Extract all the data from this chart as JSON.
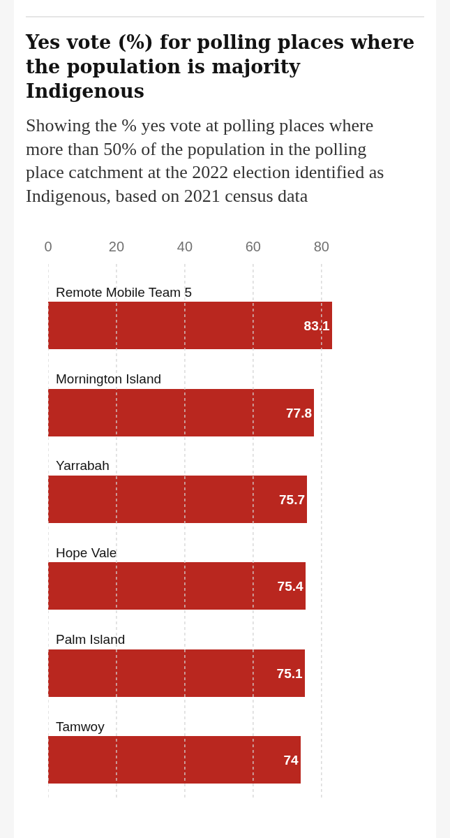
{
  "chart_data": {
    "type": "bar",
    "orientation": "horizontal",
    "title": "Yes vote (%) for polling places where the population is majority Indigenous",
    "subtitle": "Showing the % yes vote at polling places where more than 50% of the population in the polling place catchment at the 2022 election identified as Indigenous, based on 2021 census data",
    "categories": [
      "Remote Mobile Team 5",
      "Mornington Island",
      "Yarrabah",
      "Hope Vale",
      "Palm Island",
      "Tamwoy"
    ],
    "values": [
      83.1,
      77.8,
      75.7,
      75.4,
      75.1,
      74
    ],
    "color": "#b9271f",
    "xlim": [
      0,
      83.1
    ],
    "xticks": [
      0,
      20,
      40,
      60,
      80
    ],
    "grid": "x",
    "data_labels": true
  }
}
